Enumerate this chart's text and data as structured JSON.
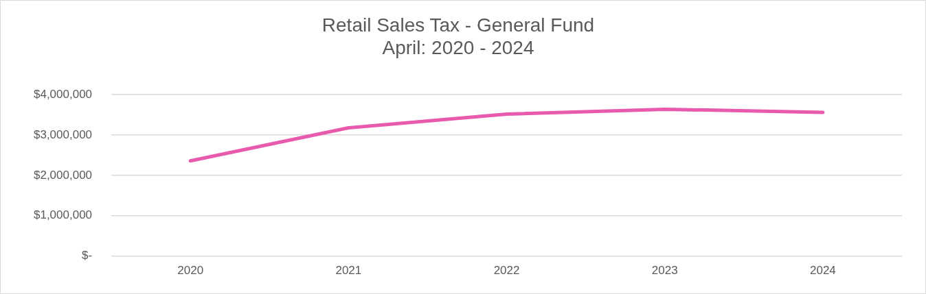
{
  "chart_data": {
    "type": "line",
    "title": "Retail Sales Tax - General Fund",
    "subtitle": "April: 2020 - 2024",
    "categories": [
      "2020",
      "2021",
      "2022",
      "2023",
      "2024"
    ],
    "series": [
      {
        "color": "#e85aad",
        "values": [
          2360000,
          3180000,
          3520000,
          3640000,
          3560000
        ]
      }
    ],
    "ylim": [
      0,
      4000000
    ],
    "yticks": [
      {
        "value": 0,
        "label": "$-"
      },
      {
        "value": 1000000,
        "label": "$1,000,000"
      },
      {
        "value": 2000000,
        "label": "$2,000,000"
      },
      {
        "value": 3000000,
        "label": "$3,000,000"
      },
      {
        "value": 4000000,
        "label": "$4,000,000"
      }
    ],
    "grid": "y",
    "legend": false,
    "marker": "none",
    "line_style": "solid"
  }
}
